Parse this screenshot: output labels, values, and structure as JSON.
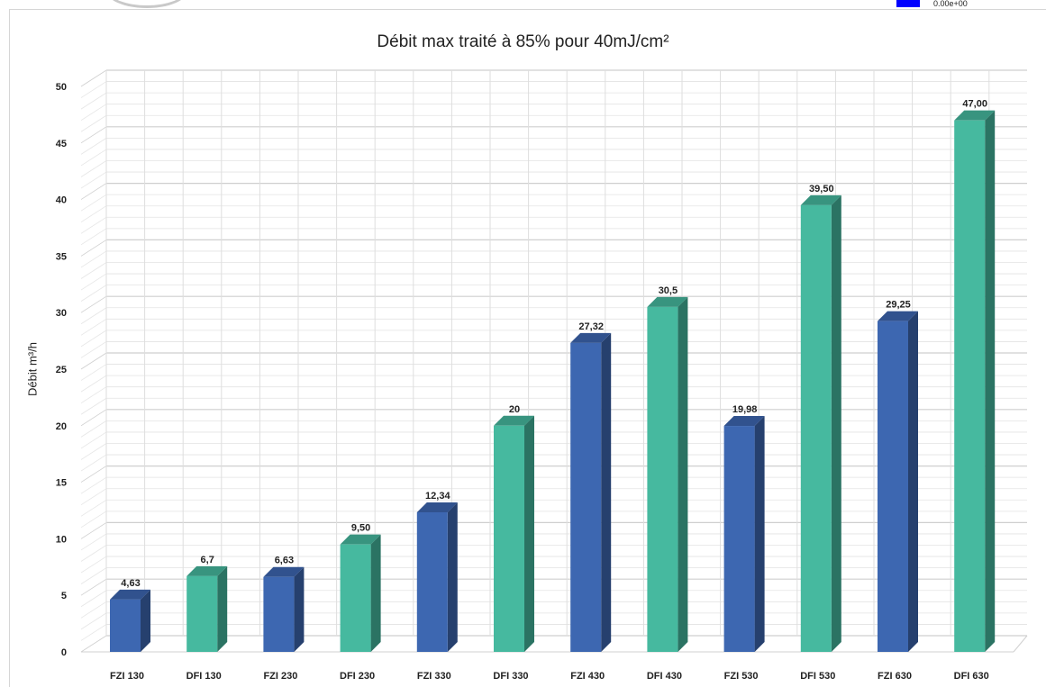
{
  "topbar": {
    "value_text": "0.00e+00",
    "swatch_color": "#0000ff"
  },
  "chart_data": {
    "type": "bar",
    "title": "Débit max traité à 85% pour 40mJ/cm²",
    "xlabel": "",
    "ylabel": "Débit m³/h",
    "ylim": [
      0,
      50
    ],
    "yticks": [
      0,
      5,
      10,
      15,
      20,
      25,
      30,
      35,
      40,
      45,
      50
    ],
    "grid": true,
    "legend": "none",
    "colors": {
      "FZI": "#3d67b1",
      "DFI": "#46b99f"
    },
    "categories": [
      "FZI 130",
      "DFI 130",
      "FZI 230",
      "DFI 230",
      "FZI 330",
      "DFI 330",
      "FZI 430",
      "DFI 430",
      "FZI 530",
      "DFI 530",
      "FZI 630",
      "DFI 630"
    ],
    "values": [
      4.63,
      6.7,
      6.63,
      9.5,
      12.34,
      20,
      27.32,
      30.5,
      19.98,
      39.5,
      29.25,
      47.0
    ],
    "data_labels": [
      "4,63",
      "6,7",
      "6,63",
      "9,50",
      "12,34",
      "20",
      "27,32",
      "30,5",
      "19,98",
      "39,50",
      "29,25",
      "47,00"
    ]
  }
}
